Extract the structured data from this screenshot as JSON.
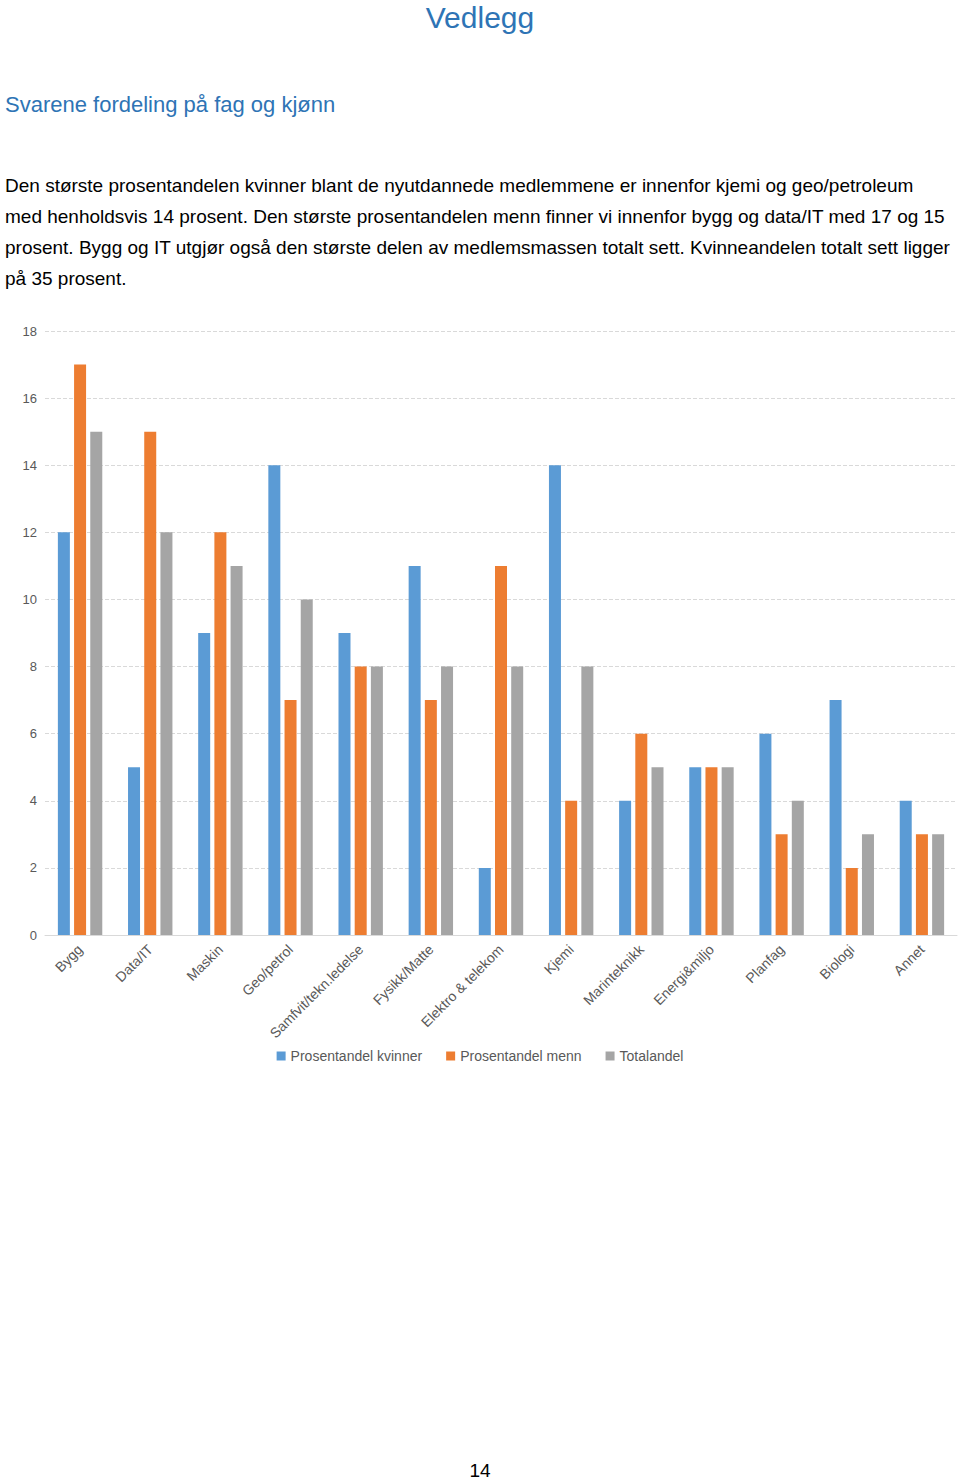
{
  "page": {
    "title": "Vedlegg",
    "subtitle": "Svarene fordeling på fag og kjønn",
    "paragraph": "Den største prosentandelen kvinner blant de nyutdannede medlemmene er innenfor kjemi og geo/petroleum med henholdsvis 14 prosent. Den største prosentandelen menn finner vi innenfor bygg og data/IT med 17 og 15 prosent. Bygg og IT utgjør også den største delen av medlemsmassen totalt sett. Kvinneandelen totalt sett ligger på 35 prosent.",
    "page_number": "14"
  },
  "chart_data": {
    "type": "bar",
    "categories": [
      "Bygg",
      "Data/IT",
      "Maskin",
      "Geo/petrol",
      "Samfvit/tekn.ledelse",
      "Fysikk/Matte",
      "Elektro & telekom",
      "Kjemi",
      "Marinteknikk",
      "Energi&miljo",
      "Planfag",
      "Biologi",
      "Annet"
    ],
    "series": [
      {
        "name": "Prosentandel kvinner",
        "color": "#5b9bd5",
        "values": [
          12,
          5,
          9,
          14,
          9,
          11,
          2,
          14,
          4,
          5,
          6,
          7,
          4
        ]
      },
      {
        "name": "Prosentandel menn",
        "color": "#ed7d31",
        "values": [
          17,
          15,
          12,
          7,
          8,
          7,
          11,
          4,
          6,
          5,
          3,
          2,
          3
        ]
      },
      {
        "name": "Totalandel",
        "color": "#a5a5a5",
        "values": [
          15,
          12,
          11,
          10,
          8,
          8,
          8,
          8,
          5,
          5,
          4,
          3,
          3
        ]
      }
    ],
    "ylim": [
      0,
      18
    ],
    "yticks": [
      0,
      2,
      4,
      6,
      8,
      10,
      12,
      14,
      16,
      18
    ],
    "grid": true,
    "legend": "bottom"
  }
}
